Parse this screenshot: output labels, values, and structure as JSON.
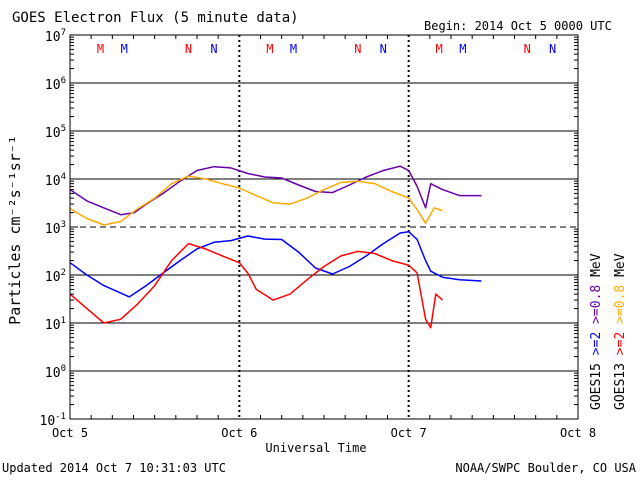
{
  "header": {
    "title": "GOES Electron Flux (5 minute data)",
    "begin": "Begin: 2014 Oct 5 0000 UTC"
  },
  "footer": {
    "updated": "Updated 2014 Oct  7 10:31:03 UTC",
    "source": "NOAA/SWPC Boulder, CO USA"
  },
  "chart_data": {
    "type": "line",
    "title": "GOES Electron Flux (5 minute data)",
    "xlabel": "Universal Time",
    "ylabel": "Particles cm⁻²s⁻¹sr⁻¹",
    "y_scale": "log",
    "ylim": [
      0.1,
      10000000
    ],
    "xlim_days": [
      "2014 Oct 5 0000 UTC",
      "2014 Oct 8 0000 UTC"
    ],
    "x_unit": "days since 2014 Oct 5 0000 UTC",
    "x_ticks": [
      {
        "x": 0,
        "label": "Oct 5"
      },
      {
        "x": 1,
        "label": "Oct 6"
      },
      {
        "x": 2,
        "label": "Oct 7"
      },
      {
        "x": 3,
        "label": "Oct 8"
      }
    ],
    "y_ticks": [
      {
        "exp": "7"
      },
      {
        "exp": "6"
      },
      {
        "exp": "5"
      },
      {
        "exp": "4"
      },
      {
        "exp": "3"
      },
      {
        "exp": "2"
      },
      {
        "exp": "1"
      },
      {
        "exp": "0"
      },
      {
        "exp": "-1"
      }
    ],
    "threshold_line": 1000,
    "grid": true,
    "legend_position": "right",
    "right_labels": [
      {
        "text": "GOES15",
        "color": "#000000"
      },
      {
        "text": ">=2",
        "color": "#0000ff"
      },
      {
        "text": ">=0.8",
        "color": "#6600aa"
      },
      {
        "text": "MeV",
        "color": "#000000"
      },
      {
        "text": "GOES13",
        "color": "#000000"
      },
      {
        "text": ">=2",
        "color": "#ff0000"
      },
      {
        "text": ">=0.8",
        "color": "#ffaa00"
      },
      {
        "text": "MeV",
        "color": "#000000"
      }
    ],
    "markers": [
      {
        "x": 0.18,
        "label": "M",
        "color": "#ff0000"
      },
      {
        "x": 0.32,
        "label": "M",
        "color": "#0000ff"
      },
      {
        "x": 0.7,
        "label": "N",
        "color": "#ff0000"
      },
      {
        "x": 0.85,
        "label": "N",
        "color": "#0000ff"
      },
      {
        "x": 1.18,
        "label": "M",
        "color": "#ff0000"
      },
      {
        "x": 1.32,
        "label": "M",
        "color": "#0000ff"
      },
      {
        "x": 1.7,
        "label": "N",
        "color": "#ff0000"
      },
      {
        "x": 1.85,
        "label": "N",
        "color": "#0000ff"
      },
      {
        "x": 2.18,
        "label": "M",
        "color": "#ff0000"
      },
      {
        "x": 2.32,
        "label": "M",
        "color": "#0000ff"
      },
      {
        "x": 2.7,
        "label": "N",
        "color": "#ff0000"
      },
      {
        "x": 2.85,
        "label": "N",
        "color": "#0000ff"
      }
    ],
    "series": [
      {
        "name": "GOES15 >=0.8 MeV",
        "color": "#6600aa",
        "points": [
          [
            0.0,
            6000
          ],
          [
            0.1,
            3500
          ],
          [
            0.2,
            2500
          ],
          [
            0.3,
            1800
          ],
          [
            0.38,
            2000
          ],
          [
            0.45,
            3000
          ],
          [
            0.55,
            5000
          ],
          [
            0.65,
            9000
          ],
          [
            0.75,
            15000
          ],
          [
            0.85,
            18000
          ],
          [
            0.95,
            17000
          ],
          [
            1.05,
            13000
          ],
          [
            1.15,
            11000
          ],
          [
            1.25,
            10500
          ],
          [
            1.35,
            7500
          ],
          [
            1.45,
            5500
          ],
          [
            1.55,
            5200
          ],
          [
            1.65,
            7500
          ],
          [
            1.75,
            11000
          ],
          [
            1.85,
            15000
          ],
          [
            1.95,
            18500
          ],
          [
            2.0,
            15000
          ],
          [
            2.05,
            7000
          ],
          [
            2.1,
            2500
          ],
          [
            2.13,
            8000
          ],
          [
            2.2,
            6000
          ],
          [
            2.3,
            4500
          ],
          [
            2.43,
            4500
          ]
        ]
      },
      {
        "name": "GOES13 >=0.8 MeV",
        "color": "#ffaa00",
        "points": [
          [
            0.0,
            2400
          ],
          [
            0.1,
            1500
          ],
          [
            0.2,
            1100
          ],
          [
            0.3,
            1300
          ],
          [
            0.4,
            2400
          ],
          [
            0.5,
            4000
          ],
          [
            0.6,
            8000
          ],
          [
            0.7,
            11500
          ],
          [
            0.8,
            10000
          ],
          [
            0.9,
            8000
          ],
          [
            1.0,
            6500
          ],
          [
            1.1,
            4500
          ],
          [
            1.2,
            3200
          ],
          [
            1.3,
            3000
          ],
          [
            1.4,
            4000
          ],
          [
            1.5,
            6000
          ],
          [
            1.6,
            8500
          ],
          [
            1.7,
            9000
          ],
          [
            1.8,
            8000
          ],
          [
            1.9,
            5500
          ],
          [
            2.0,
            4000
          ],
          [
            2.05,
            2300
          ],
          [
            2.1,
            1200
          ],
          [
            2.15,
            2500
          ],
          [
            2.2,
            2200
          ]
        ]
      },
      {
        "name": "GOES15 >=2 MeV",
        "color": "#0000ff",
        "points": [
          [
            0.0,
            180
          ],
          [
            0.1,
            100
          ],
          [
            0.2,
            60
          ],
          [
            0.3,
            42
          ],
          [
            0.35,
            35
          ],
          [
            0.45,
            60
          ],
          [
            0.55,
            110
          ],
          [
            0.65,
            200
          ],
          [
            0.75,
            350
          ],
          [
            0.85,
            480
          ],
          [
            0.95,
            520
          ],
          [
            1.05,
            650
          ],
          [
            1.15,
            560
          ],
          [
            1.25,
            550
          ],
          [
            1.35,
            300
          ],
          [
            1.45,
            140
          ],
          [
            1.55,
            105
          ],
          [
            1.65,
            150
          ],
          [
            1.75,
            250
          ],
          [
            1.85,
            450
          ],
          [
            1.95,
            750
          ],
          [
            2.0,
            800
          ],
          [
            2.05,
            550
          ],
          [
            2.1,
            200
          ],
          [
            2.13,
            120
          ],
          [
            2.2,
            90
          ],
          [
            2.3,
            80
          ],
          [
            2.43,
            75
          ]
        ]
      },
      {
        "name": "GOES13 >=2 MeV",
        "color": "#ff0000",
        "points": [
          [
            0.0,
            40
          ],
          [
            0.1,
            20
          ],
          [
            0.2,
            10
          ],
          [
            0.3,
            12
          ],
          [
            0.4,
            25
          ],
          [
            0.5,
            60
          ],
          [
            0.6,
            200
          ],
          [
            0.7,
            450
          ],
          [
            0.8,
            350
          ],
          [
            0.9,
            250
          ],
          [
            1.0,
            180
          ],
          [
            1.05,
            110
          ],
          [
            1.1,
            50
          ],
          [
            1.2,
            30
          ],
          [
            1.3,
            40
          ],
          [
            1.4,
            80
          ],
          [
            1.5,
            150
          ],
          [
            1.6,
            250
          ],
          [
            1.7,
            310
          ],
          [
            1.8,
            280
          ],
          [
            1.9,
            200
          ],
          [
            2.0,
            160
          ],
          [
            2.05,
            110
          ],
          [
            2.1,
            12
          ],
          [
            2.13,
            8
          ],
          [
            2.16,
            40
          ],
          [
            2.2,
            30
          ]
        ]
      }
    ]
  }
}
